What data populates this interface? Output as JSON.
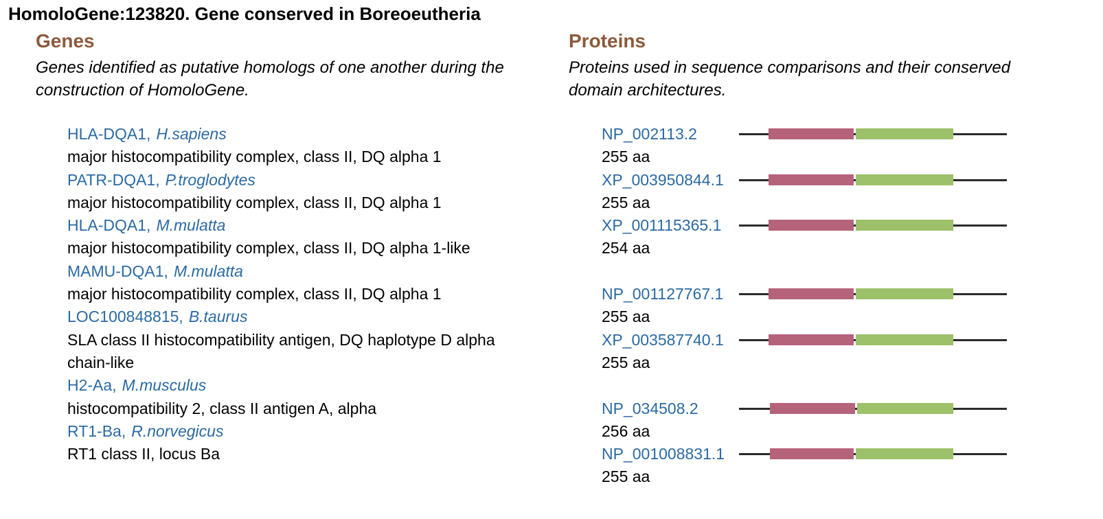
{
  "title": "HomoloGene:123820. Gene conserved in Boreoeutheria",
  "genes": {
    "heading": "Genes",
    "description": "Genes identified as putative homologs of one another during the construction of HomoloGene.",
    "items": [
      {
        "symbol": "HLA-DQA1,",
        "species": "H.sapiens",
        "description": "major histocompatibility complex, class II, DQ alpha 1"
      },
      {
        "symbol": "PATR-DQA1,",
        "species": "P.troglodytes",
        "description": "major histocompatibility complex, class II, DQ alpha 1"
      },
      {
        "symbol": "HLA-DQA1,",
        "species": "M.mulatta",
        "description": "major histocompatibility complex, class II, DQ alpha 1-like"
      },
      {
        "symbol": "MAMU-DQA1,",
        "species": "M.mulatta",
        "description": "major histocompatibility complex, class II, DQ alpha 1"
      },
      {
        "symbol": "LOC100848815,",
        "species": "B.taurus",
        "description": "SLA class II histocompatibility antigen, DQ haplotype D alpha chain-like"
      },
      {
        "symbol": "H2-Aa,",
        "species": "M.musculus",
        "description": "histocompatibility 2, class II antigen A, alpha"
      },
      {
        "symbol": "RT1-Ba,",
        "species": "R.norvegicus",
        "description": "RT1 class II, locus Ba"
      }
    ]
  },
  "proteins": {
    "heading": "Proteins",
    "description": "Proteins used in sequence comparisons and their conserved domain architectures.",
    "items": [
      {
        "accession": "NP_002113.2",
        "length": "255 aa"
      },
      {
        "accession": "XP_003950844.1",
        "length": "255 aa"
      },
      {
        "accession": "XP_001115365.1",
        "length": "254 aa"
      },
      {
        "accession": "NP_001127767.1",
        "length": "255 aa"
      },
      {
        "accession": "XP_003587740.1",
        "length": "255 aa"
      },
      {
        "accession": "NP_034508.2",
        "length": "256 aa"
      },
      {
        "accession": "NP_001008831.1",
        "length": "255 aa"
      }
    ]
  },
  "colors": {
    "heading": "#8b5a3c",
    "link": "#2b6aa3",
    "domain_1": "#b5627b",
    "domain_2": "#9dc06a"
  }
}
